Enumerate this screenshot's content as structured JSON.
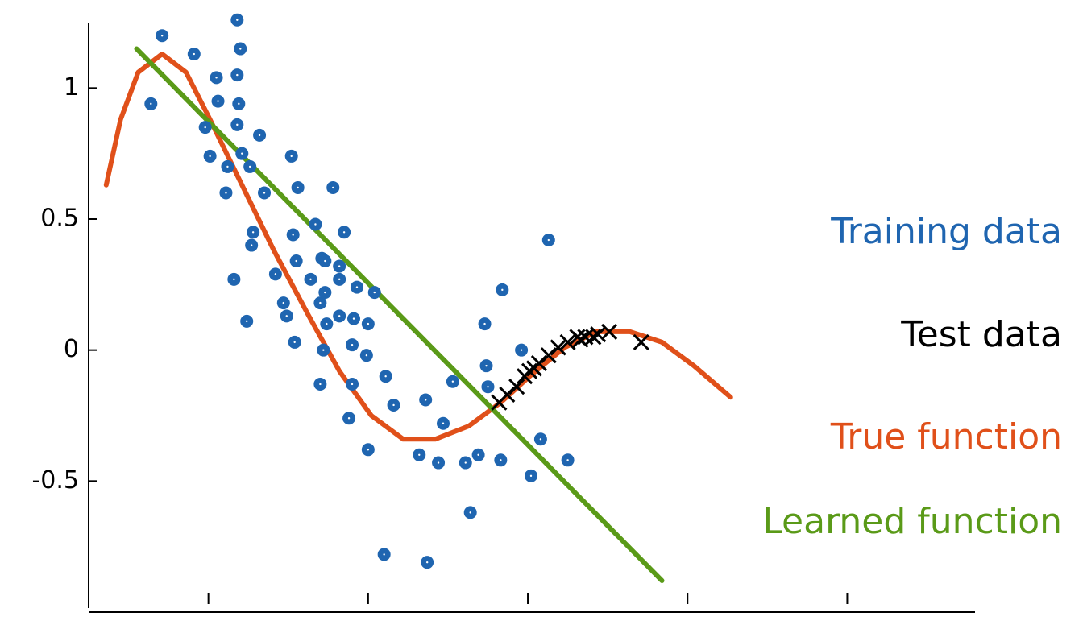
{
  "chart_data": {
    "type": "scatter",
    "xlim": [
      0.25,
      5.8
    ],
    "xticks": [
      1,
      2,
      3,
      4,
      5
    ],
    "ylim": [
      -1.0,
      1.25
    ],
    "yticks": [
      -0.5,
      0,
      0.5,
      1
    ],
    "legend": "right",
    "series": [
      {
        "name": "Training data",
        "color": "#1f65b0",
        "mark": "dot",
        "x": [
          0.64,
          0.71,
          0.91,
          0.98,
          1.01,
          1.05,
          1.06,
          1.12,
          1.11,
          1.18,
          1.2,
          1.18,
          1.19,
          1.18,
          1.21,
          1.26,
          1.32,
          1.35,
          1.28,
          1.27,
          1.16,
          1.24,
          1.42,
          1.47,
          1.49,
          1.52,
          1.56,
          1.53,
          1.55,
          1.54,
          1.64,
          1.67,
          1.7,
          1.71,
          1.73,
          1.73,
          1.74,
          1.72,
          1.7,
          1.78,
          1.82,
          1.82,
          1.85,
          1.82,
          1.91,
          1.93,
          1.9,
          1.9,
          1.88,
          2.0,
          1.99,
          2.04,
          2.11,
          2.16,
          2.0,
          2.1,
          2.37,
          2.36,
          2.47,
          2.32,
          2.44,
          2.53,
          2.61,
          2.64,
          2.69,
          2.73,
          2.74,
          2.75,
          2.83,
          2.84,
          2.96,
          3.02,
          3.08,
          3.13,
          3.25
        ],
        "values": [
          0.94,
          1.2,
          1.13,
          0.85,
          0.74,
          1.04,
          0.95,
          0.7,
          0.6,
          1.26,
          1.15,
          1.05,
          0.94,
          0.86,
          0.75,
          0.7,
          0.82,
          0.6,
          0.45,
          0.4,
          0.27,
          0.11,
          0.29,
          0.18,
          0.13,
          0.74,
          0.62,
          0.44,
          0.34,
          0.03,
          0.27,
          0.48,
          0.18,
          0.35,
          0.34,
          0.22,
          0.1,
          0.0,
          -0.13,
          0.62,
          0.32,
          0.27,
          0.45,
          0.13,
          0.12,
          0.24,
          0.02,
          -0.13,
          -0.26,
          0.1,
          -0.02,
          0.22,
          -0.1,
          -0.21,
          -0.38,
          -0.78,
          -0.81,
          -0.19,
          -0.28,
          -0.4,
          -0.43,
          -0.12,
          -0.43,
          -0.62,
          -0.4,
          0.1,
          -0.06,
          -0.14,
          -0.42,
          0.23,
          0.0,
          -0.48,
          -0.34,
          0.42,
          -0.42
        ]
      },
      {
        "name": "Test data",
        "color": "#000000",
        "mark": "cross",
        "x": [
          2.82,
          2.87,
          2.93,
          2.98,
          3.01,
          3.04,
          3.07,
          3.13,
          3.19,
          3.25,
          3.31,
          3.33,
          3.36,
          3.41,
          3.44,
          3.51,
          3.71
        ],
        "values": [
          -0.2,
          -0.17,
          -0.14,
          -0.1,
          -0.08,
          -0.07,
          -0.05,
          -0.02,
          0.01,
          0.03,
          0.05,
          0.04,
          0.05,
          0.05,
          0.06,
          0.07,
          0.03
        ]
      },
      {
        "name": "True function",
        "color": "#e0501a",
        "mark": "line",
        "x": [
          0.36,
          0.45,
          0.56,
          0.71,
          0.86,
          1.01,
          1.21,
          1.41,
          1.62,
          1.82,
          2.02,
          2.22,
          2.42,
          2.63,
          2.83,
          3.03,
          3.23,
          3.43,
          3.64,
          3.84,
          4.04,
          4.27
        ],
        "values": [
          0.63,
          0.88,
          1.06,
          1.13,
          1.06,
          0.88,
          0.63,
          0.38,
          0.14,
          -0.08,
          -0.25,
          -0.34,
          -0.34,
          -0.29,
          -0.2,
          -0.09,
          0.01,
          0.07,
          0.07,
          0.03,
          -0.06,
          -0.18
        ]
      },
      {
        "name": "Learned function",
        "color": "#5a9a18",
        "mark": "line",
        "x": [
          0.55,
          3.84
        ],
        "values": [
          1.15,
          -0.88
        ]
      }
    ]
  }
}
